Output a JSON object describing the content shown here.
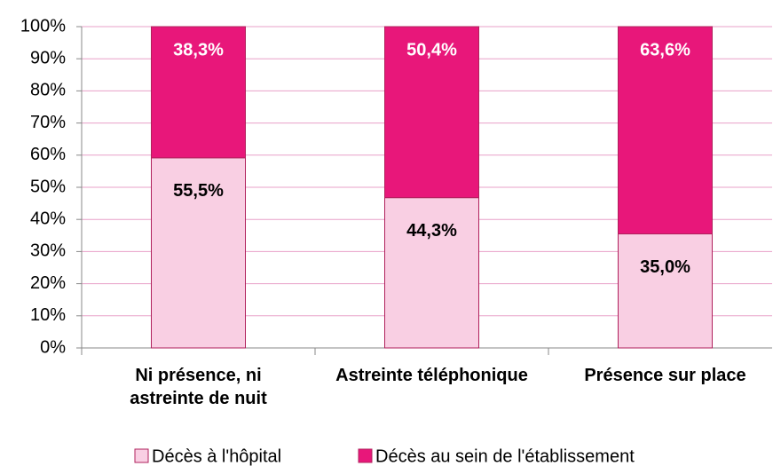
{
  "chart_data": {
    "type": "bar",
    "stack_mode": "percent",
    "categories": [
      "Ni présence, ni astreinte de nuit",
      "Astreinte téléphonique",
      "Présence sur place"
    ],
    "series": [
      {
        "name": "Décès à l'hôpital",
        "color": "#f9cfe3",
        "values": [
          55.5,
          44.3,
          35.0
        ],
        "value_labels": [
          "55,5%",
          "44,3%",
          "35,0%"
        ]
      },
      {
        "name": "Décès au sein de l'établissement",
        "color": "#e8177a",
        "values": [
          38.3,
          50.4,
          63.6
        ],
        "value_labels": [
          "38,3%",
          "50,4%",
          "63,6%"
        ]
      }
    ],
    "ylim": [
      0,
      100
    ],
    "yticks": [
      {
        "value": 0,
        "label": "0%"
      },
      {
        "value": 10,
        "label": "10%"
      },
      {
        "value": 20,
        "label": "20%"
      },
      {
        "value": 30,
        "label": "30%"
      },
      {
        "value": 40,
        "label": "40%"
      },
      {
        "value": 50,
        "label": "50%"
      },
      {
        "value": 60,
        "label": "60%"
      },
      {
        "value": 70,
        "label": "70%"
      },
      {
        "value": 80,
        "label": "80%"
      },
      {
        "value": 90,
        "label": "90%"
      },
      {
        "value": 100,
        "label": "100%"
      }
    ],
    "grid": true,
    "legend": "bottom"
  }
}
